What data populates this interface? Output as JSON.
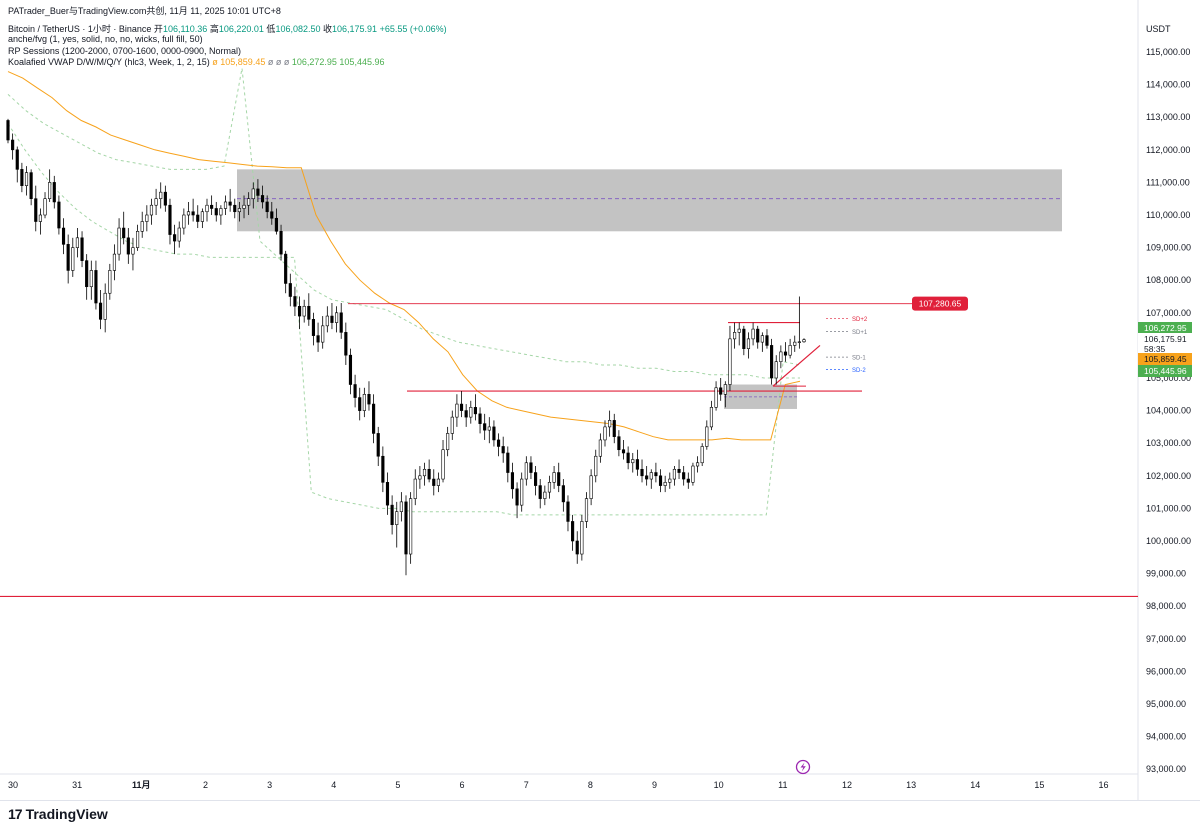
{
  "header": {
    "attribution": "PATrader_Buer与TradingView.com共创, 11月 11, 2025 10:01 UTC+8",
    "symbol": "Bitcoin / TetherUS · 1小时 · Binance",
    "open_label": "开",
    "open": "106,110.36",
    "high_label": "高",
    "high": "106,220.01",
    "low_label": "低",
    "low": "106,082.50",
    "close_label": "收",
    "close": "106,175.91",
    "change": "+65.55 (+0.06%)",
    "ind1": "anche/fvg (1, yes, solid, no, no, wicks, full fill, 50)",
    "ind2": "RP Sessions (1200-2000, 0700-1600, 0000-0900, Normal)",
    "ind3_name": "Koalafied VWAP D/W/M/Q/Y (hlc3, Week, 1, 2, 15)",
    "ind3_empty1": "ø",
    "ind3_v1": "105,859.45",
    "ind3_empty2": "ø ø ø",
    "ind3_v2": "106,272.95",
    "ind3_v3": "105,445.96"
  },
  "currency": "USDT",
  "countdown": "58:35",
  "brand": "TradingView",
  "colors": {
    "up": "#089981",
    "candle": "#000000",
    "vwap": "#f7a21b",
    "band": "#a5d6a7",
    "red_line": "#e0203a",
    "zone": "#c0c0c0",
    "purple": "#7e57c2"
  },
  "chart_data": {
    "type": "candlestick",
    "x_ticks": [
      "30",
      "31",
      "11月",
      "2",
      "3",
      "4",
      "5",
      "6",
      "7",
      "8",
      "9",
      "10",
      "11",
      "12",
      "13",
      "14",
      "15",
      "16"
    ],
    "y_ticks": [
      "115,000.00",
      "114,000.00",
      "113,000.00",
      "112,000.00",
      "111,000.00",
      "110,000.00",
      "109,000.00",
      "108,000.00",
      "107,000.00",
      "106,000.00",
      "105,000.00",
      "104,000.00",
      "103,000.00",
      "102,000.00",
      "101,000.00",
      "100,000.00",
      "99,000.00",
      "98,000.00",
      "97,000.00",
      "96,000.00",
      "95,000.00",
      "94,000.00",
      "93,000.00"
    ],
    "ylim": [
      92500,
      115600
    ],
    "price_labels": [
      {
        "text": "106,272.95",
        "value": 106272.95,
        "color": "#4caf50"
      },
      {
        "text": "106,175.91",
        "value": 106175.91,
        "color": "#ffffff"
      },
      {
        "text": "105,859.45",
        "value": 105859.45,
        "color": "#f7a21b"
      },
      {
        "text": "105,445.96",
        "value": 105445.96,
        "color": "#4caf50"
      }
    ],
    "annotations": [
      {
        "type": "hline",
        "value": 107280.65,
        "label": "107,280.65",
        "color": "#e0203a"
      },
      {
        "type": "hline",
        "value": 98300,
        "color": "#e0203a"
      },
      {
        "type": "hline",
        "value": 104600,
        "color": "#e0203a"
      },
      {
        "type": "zone",
        "from": 109500,
        "to": 111400,
        "color": "#c0c0c0"
      },
      {
        "type": "zone",
        "from": 104050,
        "to": 104800,
        "color": "#c0c0c0"
      },
      {
        "type": "label",
        "text": "SD+2",
        "value": 106820
      },
      {
        "type": "label",
        "text": "SD+1",
        "value": 106430
      },
      {
        "type": "label",
        "text": "SD-1",
        "value": 105640
      },
      {
        "type": "label",
        "text": "SD-2",
        "value": 105260
      }
    ],
    "candles": [
      [
        112900,
        112950,
        112200,
        112300
      ],
      [
        112300,
        112500,
        111700,
        112000
      ],
      [
        112000,
        112100,
        111000,
        111400
      ],
      [
        111400,
        111600,
        110700,
        110900
      ],
      [
        110900,
        111500,
        110600,
        111300
      ],
      [
        111300,
        111400,
        110300,
        110500
      ],
      [
        110500,
        110900,
        109500,
        109800
      ],
      [
        109800,
        110200,
        109400,
        110000
      ],
      [
        110000,
        110700,
        109900,
        110500
      ],
      [
        110500,
        111400,
        110400,
        111000
      ],
      [
        111000,
        111200,
        110200,
        110400
      ],
      [
        110400,
        110600,
        109400,
        109600
      ],
      [
        109600,
        109900,
        108800,
        109100
      ],
      [
        109100,
        109400,
        107900,
        108300
      ],
      [
        108300,
        109300,
        108100,
        109000
      ],
      [
        109000,
        109600,
        108700,
        109300
      ],
      [
        109300,
        109500,
        108400,
        108600
      ],
      [
        108600,
        108800,
        107400,
        107800
      ],
      [
        107800,
        108600,
        107400,
        108300
      ],
      [
        108300,
        108600,
        107100,
        107300
      ],
      [
        107300,
        107700,
        106500,
        106800
      ],
      [
        106800,
        107900,
        106400,
        107600
      ],
      [
        107600,
        108500,
        107400,
        108300
      ],
      [
        108300,
        109100,
        108000,
        108800
      ],
      [
        108800,
        109900,
        108600,
        109600
      ],
      [
        109600,
        110100,
        109100,
        109300
      ],
      [
        109300,
        109600,
        108500,
        108800
      ],
      [
        108800,
        109300,
        108300,
        109000
      ],
      [
        109000,
        109700,
        108900,
        109500
      ],
      [
        109500,
        110100,
        109300,
        109800
      ],
      [
        109800,
        110300,
        109500,
        110000
      ],
      [
        110000,
        110500,
        109700,
        110300
      ],
      [
        110300,
        110800,
        110000,
        110500
      ],
      [
        110500,
        111000,
        110200,
        110700
      ],
      [
        110700,
        110900,
        110100,
        110300
      ],
      [
        110300,
        110500,
        109100,
        109400
      ],
      [
        109400,
        109700,
        108800,
        109200
      ],
      [
        109200,
        109800,
        109000,
        109600
      ],
      [
        109600,
        110200,
        109400,
        110000
      ],
      [
        110000,
        110400,
        109700,
        110100
      ],
      [
        110100,
        110500,
        109800,
        110000
      ],
      [
        110000,
        110300,
        109600,
        109800
      ],
      [
        109800,
        110200,
        109600,
        110100
      ],
      [
        110100,
        110500,
        109800,
        110300
      ],
      [
        110300,
        110600,
        110000,
        110200
      ],
      [
        110200,
        110400,
        109800,
        110000
      ],
      [
        110000,
        110300,
        109700,
        110200
      ],
      [
        110200,
        110600,
        110000,
        110400
      ],
      [
        110400,
        110800,
        110100,
        110300
      ],
      [
        110300,
        110500,
        109900,
        110100
      ],
      [
        110100,
        110400,
        109800,
        110200
      ],
      [
        110200,
        110600,
        109900,
        110300
      ],
      [
        110300,
        110700,
        110000,
        110500
      ],
      [
        110500,
        111000,
        110200,
        110800
      ],
      [
        110800,
        111100,
        110400,
        110600
      ],
      [
        110600,
        110900,
        110200,
        110400
      ],
      [
        110400,
        110600,
        109900,
        110100
      ],
      [
        110100,
        110400,
        109700,
        109900
      ],
      [
        109900,
        110200,
        109400,
        109500
      ],
      [
        109500,
        109700,
        108600,
        108800
      ],
      [
        108800,
        108900,
        107600,
        107900
      ],
      [
        107900,
        108200,
        107200,
        107500
      ],
      [
        107500,
        107800,
        106900,
        107200
      ],
      [
        107200,
        107500,
        106500,
        106900
      ],
      [
        106900,
        107400,
        106700,
        107200
      ],
      [
        107200,
        107600,
        106600,
        106800
      ],
      [
        106800,
        107000,
        106000,
        106300
      ],
      [
        106300,
        106700,
        105800,
        106100
      ],
      [
        106100,
        106900,
        105900,
        106600
      ],
      [
        106600,
        107200,
        106400,
        106900
      ],
      [
        106900,
        107300,
        106500,
        106700
      ],
      [
        106700,
        107200,
        106400,
        107000
      ],
      [
        107000,
        107300,
        106200,
        106400
      ],
      [
        106400,
        106700,
        105400,
        105700
      ],
      [
        105700,
        105900,
        104500,
        104800
      ],
      [
        104800,
        105100,
        104100,
        104400
      ],
      [
        104400,
        104700,
        103700,
        104000
      ],
      [
        104000,
        104700,
        103800,
        104500
      ],
      [
        104500,
        104900,
        104000,
        104200
      ],
      [
        104200,
        104500,
        103000,
        103300
      ],
      [
        103300,
        103500,
        102300,
        102600
      ],
      [
        102600,
        102900,
        101500,
        101800
      ],
      [
        101800,
        102100,
        100800,
        101100
      ],
      [
        101100,
        101400,
        100200,
        100500
      ],
      [
        100500,
        101200,
        99800,
        100900
      ],
      [
        100900,
        101500,
        100600,
        101200
      ],
      [
        101200,
        101400,
        98950,
        99600
      ],
      [
        99600,
        101500,
        99300,
        101300
      ],
      [
        101300,
        102200,
        101100,
        101900
      ],
      [
        101900,
        102300,
        101600,
        102000
      ],
      [
        102000,
        102400,
        101700,
        102200
      ],
      [
        102200,
        102500,
        101800,
        101900
      ],
      [
        101900,
        102200,
        101400,
        101700
      ],
      [
        101700,
        102100,
        101500,
        101900
      ],
      [
        101900,
        103100,
        101800,
        102800
      ],
      [
        102800,
        103500,
        102600,
        103300
      ],
      [
        103300,
        104000,
        103100,
        103800
      ],
      [
        103800,
        104500,
        103500,
        104200
      ],
      [
        104200,
        104600,
        103800,
        104000
      ],
      [
        104000,
        104200,
        103500,
        103800
      ],
      [
        103800,
        104300,
        103600,
        104100
      ],
      [
        104100,
        104500,
        103700,
        103900
      ],
      [
        103900,
        104100,
        103300,
        103600
      ],
      [
        103600,
        103900,
        103100,
        103400
      ],
      [
        103400,
        103800,
        103000,
        103500
      ],
      [
        103500,
        103700,
        102900,
        103100
      ],
      [
        103100,
        103300,
        102600,
        102900
      ],
      [
        102900,
        103200,
        102400,
        102700
      ],
      [
        102700,
        102900,
        101800,
        102100
      ],
      [
        102100,
        102400,
        101300,
        101600
      ],
      [
        101600,
        101800,
        100700,
        101100
      ],
      [
        101100,
        102100,
        100900,
        101900
      ],
      [
        101900,
        102600,
        101700,
        102400
      ],
      [
        102400,
        102600,
        101900,
        102100
      ],
      [
        102100,
        102300,
        101400,
        101700
      ],
      [
        101700,
        101900,
        101000,
        101300
      ],
      [
        101300,
        101700,
        101100,
        101500
      ],
      [
        101500,
        102000,
        101300,
        101800
      ],
      [
        101800,
        102300,
        101600,
        102100
      ],
      [
        102100,
        102400,
        101500,
        101700
      ],
      [
        101700,
        101900,
        100900,
        101200
      ],
      [
        101200,
        101400,
        100300,
        100600
      ],
      [
        100600,
        100800,
        99700,
        100000
      ],
      [
        100000,
        100300,
        99300,
        99600
      ],
      [
        99600,
        100800,
        99400,
        100600
      ],
      [
        100600,
        101500,
        100400,
        101300
      ],
      [
        101300,
        102200,
        101100,
        102000
      ],
      [
        102000,
        102800,
        101800,
        102600
      ],
      [
        102600,
        103300,
        102400,
        103100
      ],
      [
        103100,
        103700,
        102900,
        103500
      ],
      [
        103500,
        104000,
        103200,
        103700
      ],
      [
        103700,
        103900,
        103000,
        103200
      ],
      [
        103200,
        103400,
        102600,
        102800
      ],
      [
        102800,
        103100,
        102500,
        102700
      ],
      [
        102700,
        102900,
        102200,
        102400
      ],
      [
        102400,
        102700,
        102100,
        102500
      ],
      [
        102500,
        102800,
        102000,
        102200
      ],
      [
        102200,
        102500,
        101800,
        102000
      ],
      [
        102000,
        102300,
        101700,
        101900
      ],
      [
        101900,
        102200,
        101600,
        102100
      ],
      [
        102100,
        102400,
        101800,
        102000
      ],
      [
        102000,
        102200,
        101500,
        101700
      ],
      [
        101700,
        102000,
        101500,
        101800
      ],
      [
        101800,
        102100,
        101600,
        101900
      ],
      [
        101900,
        102300,
        101700,
        102200
      ],
      [
        102200,
        102500,
        101900,
        102100
      ],
      [
        102100,
        102300,
        101700,
        101900
      ],
      [
        101900,
        102100,
        101600,
        101800
      ],
      [
        101800,
        102400,
        101700,
        102300
      ],
      [
        102300,
        102600,
        102100,
        102400
      ],
      [
        102400,
        103000,
        102300,
        102900
      ],
      [
        102900,
        103700,
        102800,
        103500
      ],
      [
        103500,
        104300,
        103400,
        104100
      ],
      [
        104100,
        104900,
        104000,
        104700
      ],
      [
        104700,
        105000,
        104300,
        104500
      ],
      [
        104500,
        104900,
        104100,
        104800
      ],
      [
        104800,
        106600,
        104600,
        106200
      ],
      [
        106200,
        106700,
        105900,
        106400
      ],
      [
        106400,
        106700,
        106000,
        106500
      ],
      [
        106500,
        106600,
        105700,
        105900
      ],
      [
        105900,
        106400,
        105600,
        106200
      ],
      [
        106200,
        106700,
        106000,
        106500
      ],
      [
        106500,
        106600,
        105900,
        106100
      ],
      [
        106100,
        106400,
        105800,
        106300
      ],
      [
        106300,
        106500,
        105900,
        106000
      ],
      [
        106000,
        106200,
        104800,
        105000
      ],
      [
        105000,
        105700,
        104800,
        105500
      ],
      [
        105500,
        106000,
        105300,
        105800
      ],
      [
        105800,
        106100,
        105500,
        105700
      ],
      [
        105700,
        106200,
        105600,
        106000
      ],
      [
        106000,
        106300,
        105800,
        106100
      ],
      [
        106100,
        107500,
        105900,
        106110.36
      ],
      [
        106110.36,
        106220.01,
        106082.5,
        106175.91
      ]
    ],
    "vwap": [
      114400,
      114200,
      113900,
      113600,
      113200,
      112900,
      112700,
      112450,
      112300,
      112150,
      112000,
      111900,
      111800,
      111700,
      111650,
      111600,
      111550,
      111500,
      111480,
      111450,
      111450,
      110000,
      109200,
      108500,
      108000,
      107600,
      107300,
      107100,
      106700,
      106200,
      105800,
      105100,
      104600,
      104300,
      104100,
      104000,
      103900,
      103800,
      103750,
      103700,
      103650,
      103600,
      103500,
      103350,
      103200,
      103100,
      103100,
      103100,
      103100,
      103150,
      103100,
      103100,
      103100,
      104800,
      104900
    ],
    "upper_band": [
      113700,
      113200,
      112800,
      112500,
      112200,
      111900,
      111700,
      111600,
      111500,
      111400,
      111400,
      111400,
      111500,
      114500,
      109200,
      108700,
      108200,
      107700,
      107400,
      107300,
      107200,
      107100,
      106800,
      106500,
      106300,
      106100,
      106000,
      105900,
      105800,
      105700,
      105600,
      105500,
      105500,
      105400,
      105400,
      105300,
      105300,
      105200,
      105200,
      105100,
      105100,
      105100,
      105000,
      105000,
      105000
    ],
    "lower_band": [
      112800,
      112000,
      111300,
      110700,
      110200,
      109800,
      109500,
      109200,
      109000,
      108900,
      108800,
      108800,
      108700,
      108700,
      108700,
      108700,
      108700,
      108700,
      101500,
      101300,
      101200,
      101100,
      101000,
      101000,
      100900,
      100900,
      100900,
      100900,
      100900,
      100900,
      100800,
      100800,
      100800,
      100800,
      100800,
      100800,
      100800,
      100800,
      100800,
      100800,
      100800,
      100800,
      100800,
      100800,
      100800,
      100800,
      105500,
      105400
    ]
  }
}
